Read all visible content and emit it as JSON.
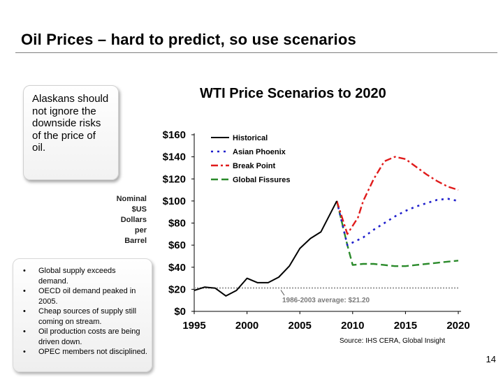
{
  "slide": {
    "title": "Oil Prices – hard to predict, so use scenarios",
    "page_number": "14"
  },
  "callout": {
    "text": "Alaskans should not ignore the downside risks of the price of oil."
  },
  "bullets": [
    "Global supply exceeds demand.",
    "OECD oil demand peaked in 2005.",
    "Cheap sources of supply still coming on stream.",
    "Oil production costs are being driven down.",
    "OPEC members not disciplined."
  ],
  "colors": {
    "historical": "#000000",
    "asian_phoenix": "#1f1fcc",
    "break_point": "#e01b1b",
    "global_fissures": "#2a8a2a",
    "average_line": "#9a9a9a"
  },
  "chart_data": {
    "type": "line",
    "title": "WTI Price Scenarios to 2020",
    "ylabel_lines": [
      "Nominal",
      "$US",
      "Dollars",
      "per",
      "Barrel"
    ],
    "xlabel": "",
    "xlim": [
      1995,
      2020
    ],
    "ylim": [
      0,
      160
    ],
    "yticks": [
      0,
      20,
      40,
      60,
      80,
      100,
      120,
      140,
      160
    ],
    "ytick_labels": [
      "$0",
      "$20",
      "$40",
      "$60",
      "$80",
      "$100",
      "$120",
      "$140",
      "$160"
    ],
    "xticks": [
      1995,
      2000,
      2005,
      2010,
      2015,
      2020
    ],
    "xtick_labels": [
      "1995",
      "2000",
      "2005",
      "2010",
      "2015",
      "2020"
    ],
    "legend_position": "top-left",
    "series": [
      {
        "name": "Historical",
        "style": "solid",
        "x": [
          1995,
          1996,
          1997,
          1998,
          1999,
          2000,
          2001,
          2002,
          2003,
          2004,
          2005,
          2006,
          2007,
          2008.5
        ],
        "y": [
          19,
          22,
          21,
          14,
          19,
          30,
          26,
          26,
          31,
          41,
          57,
          66,
          72,
          100
        ]
      },
      {
        "name": "Asian Phoenix",
        "style": "dotted",
        "x": [
          2008.5,
          2009.5,
          2011,
          2012,
          2013,
          2014,
          2015,
          2016,
          2017,
          2018,
          2019,
          2020
        ],
        "y": [
          100,
          60,
          67,
          74,
          80,
          86,
          91,
          95,
          98,
          101,
          102,
          100
        ]
      },
      {
        "name": "Break Point",
        "style": "dash-dot",
        "x": [
          2008.5,
          2009.5,
          2010.5,
          2011,
          2012,
          2013,
          2014,
          2015,
          2016,
          2017,
          2018,
          2019,
          2020
        ],
        "y": [
          100,
          70,
          85,
          100,
          120,
          136,
          140,
          138,
          131,
          124,
          118,
          113,
          110
        ]
      },
      {
        "name": "Global Fissures",
        "style": "dashed",
        "x": [
          2008.5,
          2009.5,
          2010,
          2011,
          2012,
          2013,
          2014,
          2015,
          2016,
          2017,
          2018,
          2019,
          2020
        ],
        "y": [
          100,
          60,
          42,
          43,
          43,
          42,
          41,
          41,
          42,
          43,
          44,
          45,
          46
        ]
      }
    ],
    "reference_line": {
      "value": 21.2,
      "label": "1986-2003 average: $21.20"
    },
    "source": "Source: IHS CERA, Global Insight"
  }
}
